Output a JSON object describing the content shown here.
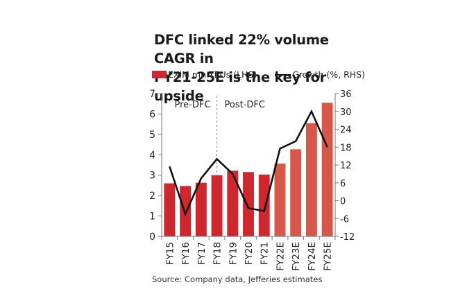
{
  "chart_data": {
    "type": "bar",
    "title": "DFC linked 22% volume CAGR in FY21-25E is the key for upside",
    "title_lines": [
      "DFC linked 22% volume CAGR in",
      "FY21-25E is the key for upside"
    ],
    "categories": [
      "FY15",
      "FY16",
      "FY17",
      "FY18",
      "FY19",
      "FY20",
      "FY21",
      "FY22E",
      "FY23E",
      "FY24E",
      "FY25E"
    ],
    "series": [
      {
        "name": "EXIM mn TEUs (LHS)",
        "type": "bar",
        "axis": "left",
        "values": [
          2.6,
          2.47,
          2.63,
          3.0,
          3.22,
          3.15,
          3.03,
          3.57,
          4.27,
          5.55,
          6.55
        ],
        "colors": [
          "#d0262e",
          "#d0262e",
          "#d0262e",
          "#d0262e",
          "#d0262e",
          "#d0262e",
          "#d0262e",
          "#d75848",
          "#d75848",
          "#d75848",
          "#d75848"
        ]
      },
      {
        "name": "Growth (%, RHS)",
        "type": "line",
        "axis": "right",
        "color": "#111111",
        "values": [
          11.5,
          -4.5,
          7.5,
          14.0,
          9.0,
          -2.5,
          -3.5,
          17.5,
          20.0,
          30.0,
          18.0
        ]
      }
    ],
    "left_axis": {
      "min": 0,
      "max": 7,
      "ticks": [
        "0",
        "1",
        "2",
        "3",
        "4",
        "5",
        "6",
        "7"
      ]
    },
    "right_axis": {
      "min": -12,
      "max": 36,
      "ticks": [
        "-12",
        "-6",
        "0",
        "6",
        "12",
        "18",
        "24",
        "30",
        "36"
      ]
    },
    "annotations": [
      {
        "text": "Pre-DFC",
        "region": "FY15-FY18"
      },
      {
        "text": "Post-DFC",
        "region": "FY19-FY25E"
      }
    ],
    "divider_after_category": "FY18",
    "legend_position": "top",
    "grid": false,
    "source": "Source: Company data, Jefferies estimates"
  }
}
